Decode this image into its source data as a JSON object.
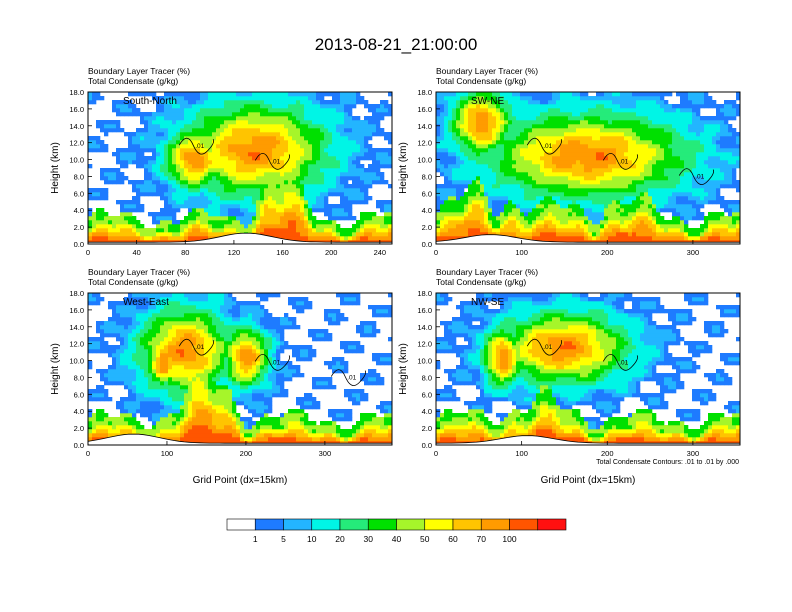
{
  "figure": {
    "title": "2013-08-21_21:00:00",
    "footnote": "Total Condensate Contours: .01 to .01 by .000",
    "x_label": "Grid Point (dx=15km)"
  },
  "colorbar": {
    "colors": [
      "#ffffff",
      "#1e7bff",
      "#23b5ff",
      "#00f5e6",
      "#25eb7a",
      "#00e000",
      "#a6f52a",
      "#ffff00",
      "#ffc400",
      "#ff9b00",
      "#ff5500",
      "#ff1010"
    ],
    "labels": [
      "1",
      "5",
      "10",
      "20",
      "30",
      "40",
      "50",
      "60",
      "70",
      "100"
    ]
  },
  "chart_data": [
    {
      "type": "heatmap",
      "title": "South-North",
      "subtitle_lines": [
        "Boundary Layer Tracer   (%)",
        "Total Condensate   (g/kg)"
      ],
      "ylabel": "Height (km)",
      "xlabel": "",
      "xlim": [
        0,
        250
      ],
      "ylim": [
        0,
        18
      ],
      "x_ticks": [
        "0",
        "40",
        "80",
        "120",
        "160",
        "200",
        "240"
      ],
      "y_ticks": [
        "0.0",
        "2.0",
        "4.0",
        "6.0",
        "8.0",
        "10.0",
        "12.0",
        "14.0",
        "16.0",
        "18.0"
      ],
      "contour_labels": [
        ".01",
        ".01"
      ]
    },
    {
      "type": "heatmap",
      "title": "SW-NE",
      "subtitle_lines": [
        "Boundary Layer Tracer   (%)",
        "Total Condensate   (g/kg)"
      ],
      "ylabel": "Height (km)",
      "xlabel": "",
      "xlim": [
        0,
        355
      ],
      "ylim": [
        0,
        18
      ],
      "x_ticks": [
        "0",
        "100",
        "200",
        "300"
      ],
      "y_ticks": [
        "0.0",
        "2.0",
        "4.0",
        "6.0",
        "8.0",
        "10.0",
        "12.0",
        "14.0",
        "16.0",
        "18.0"
      ],
      "contour_labels": [
        ".01",
        ".01",
        ".01"
      ]
    },
    {
      "type": "heatmap",
      "title": "West-East",
      "subtitle_lines": [
        "Boundary Layer Tracer   (%)",
        "Total Condensate   (g/kg)"
      ],
      "ylabel": "Height (km)",
      "xlabel": "Grid Point (dx=15km)",
      "xlim": [
        0,
        385
      ],
      "ylim": [
        0,
        18
      ],
      "x_ticks": [
        "0",
        "100",
        "200",
        "300"
      ],
      "y_ticks": [
        "0.0",
        "2.0",
        "4.0",
        "6.0",
        "8.0",
        "10.0",
        "12.0",
        "14.0",
        "16.0",
        "18.0"
      ],
      "contour_labels": [
        ".01",
        ".01",
        ".01"
      ]
    },
    {
      "type": "heatmap",
      "title": "NW-SE",
      "subtitle_lines": [
        "Boundary Layer Tracer   (%)",
        "Total Condensate   (g/kg)"
      ],
      "ylabel": "Height (km)",
      "xlabel": "Grid Point (dx=15km)",
      "xlim": [
        0,
        355
      ],
      "ylim": [
        0,
        18
      ],
      "x_ticks": [
        "0",
        "100",
        "200",
        "300"
      ],
      "y_ticks": [
        "0.0",
        "2.0",
        "4.0",
        "6.0",
        "8.0",
        "10.0",
        "12.0",
        "14.0",
        "16.0",
        "18.0"
      ],
      "contour_labels": [
        ".01",
        ".01"
      ]
    }
  ]
}
